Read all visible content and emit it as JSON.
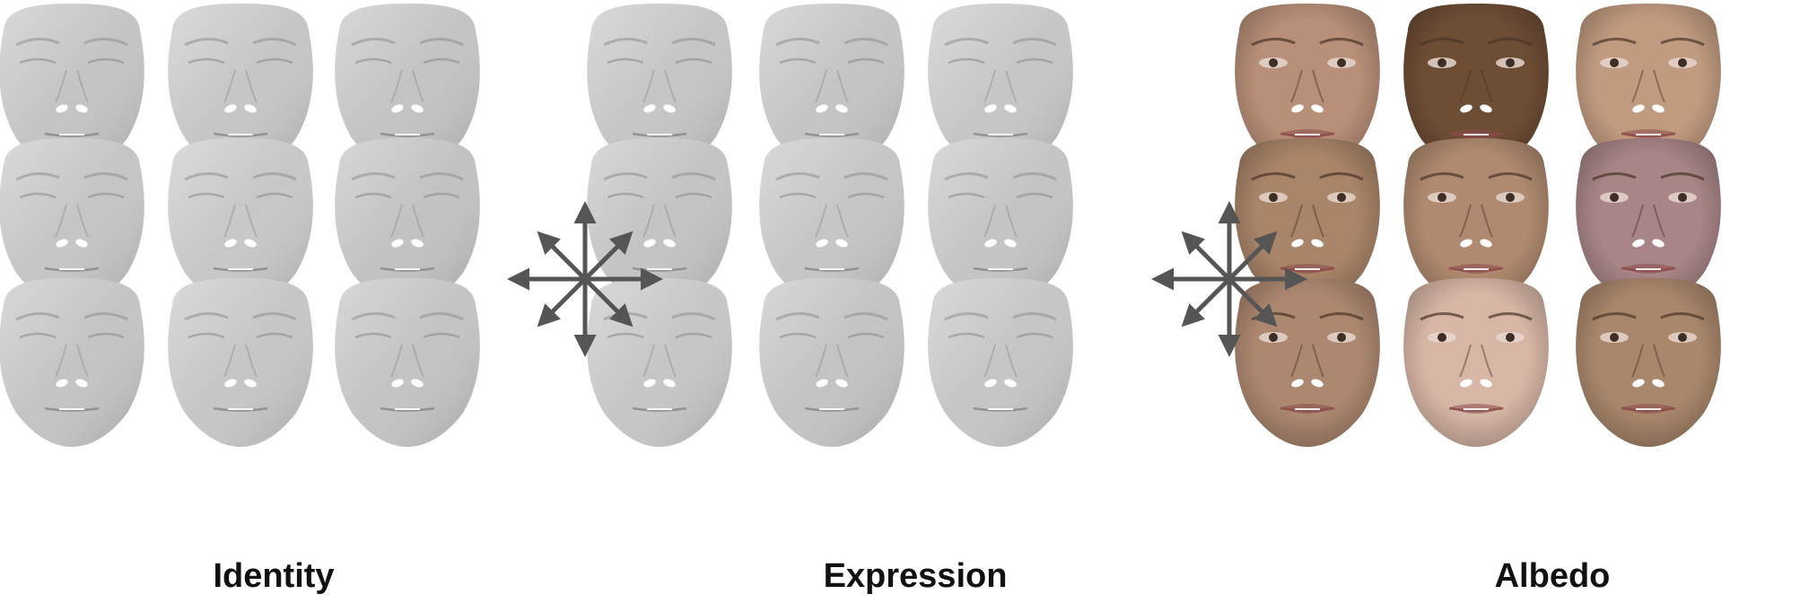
{
  "panels": [
    {
      "id": "identity",
      "label": "Identity",
      "kind": "mesh",
      "colors": [
        "#c4c4c4",
        "#c6c6c6",
        "#c3c3c3",
        "#c5c5c5",
        "#c7c7c7",
        "#c2c2c2",
        "#c4c4c4",
        "#c6c6c6",
        "#c3c3c3"
      ]
    },
    {
      "id": "expression",
      "label": "Expression",
      "kind": "mesh",
      "colors": [
        "#c5c5c5",
        "#c4c4c4",
        "#c6c6c6",
        "#c3c3c3",
        "#c5c5c5",
        "#c4c4c4",
        "#c6c6c6",
        "#c3c3c3",
        "#c5c5c5"
      ]
    },
    {
      "id": "albedo",
      "label": "Albedo",
      "kind": "albedo",
      "colors": [
        "#b88f78",
        "#6e4d35",
        "#c19b80",
        "#a88468",
        "#b08a70",
        "#a88587",
        "#ad8870",
        "#d7b6a6",
        "#a9876c"
      ]
    }
  ],
  "arrows": {
    "color": "#555555",
    "icon": "eight-direction-arrows"
  }
}
